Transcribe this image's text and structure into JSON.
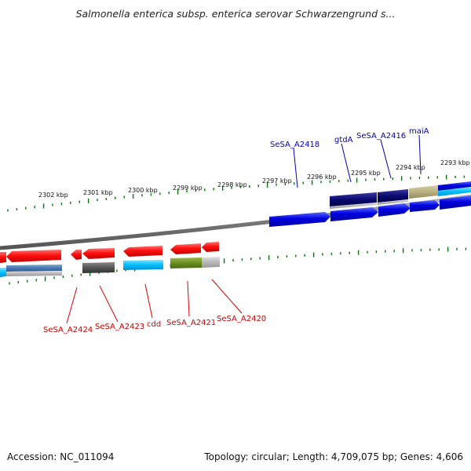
{
  "title": "Salmonella enterica subsp. enterica serovar Schwarzengrund s...",
  "accession": "Accession: NC_011094",
  "stats": "Topology: circular; Length: 4,709,075 bp; Genes: 4,606",
  "ticks_upper": [
    "2302 kbp",
    "2301 kbp",
    "2300 kbp",
    "2299 kbp",
    "2298 kbp",
    "2297 kbp",
    "2296 kbp",
    "2295 kbp",
    "2294 kbp",
    "2293 kbp"
  ],
  "genes_upper": [
    "SeSA_A2418",
    "gtdA",
    "SeSA_A2416",
    "maiA"
  ],
  "genes_lower": [
    "SeSA_A2424",
    "SeSA_A2423",
    "cdd",
    "SeSA_A2421",
    "SeSA_A2420"
  ],
  "colors": {
    "forward_strand": "#0000dd",
    "forward_dark": "#000066",
    "reverse_strand": "#dd0000",
    "cog_green": "#6b8e23",
    "cog_khaki": "#b8b080",
    "cog_cyan": "#00bfff",
    "cog_gray": "#555555",
    "tick": "#007700",
    "backbone": "#777777"
  }
}
